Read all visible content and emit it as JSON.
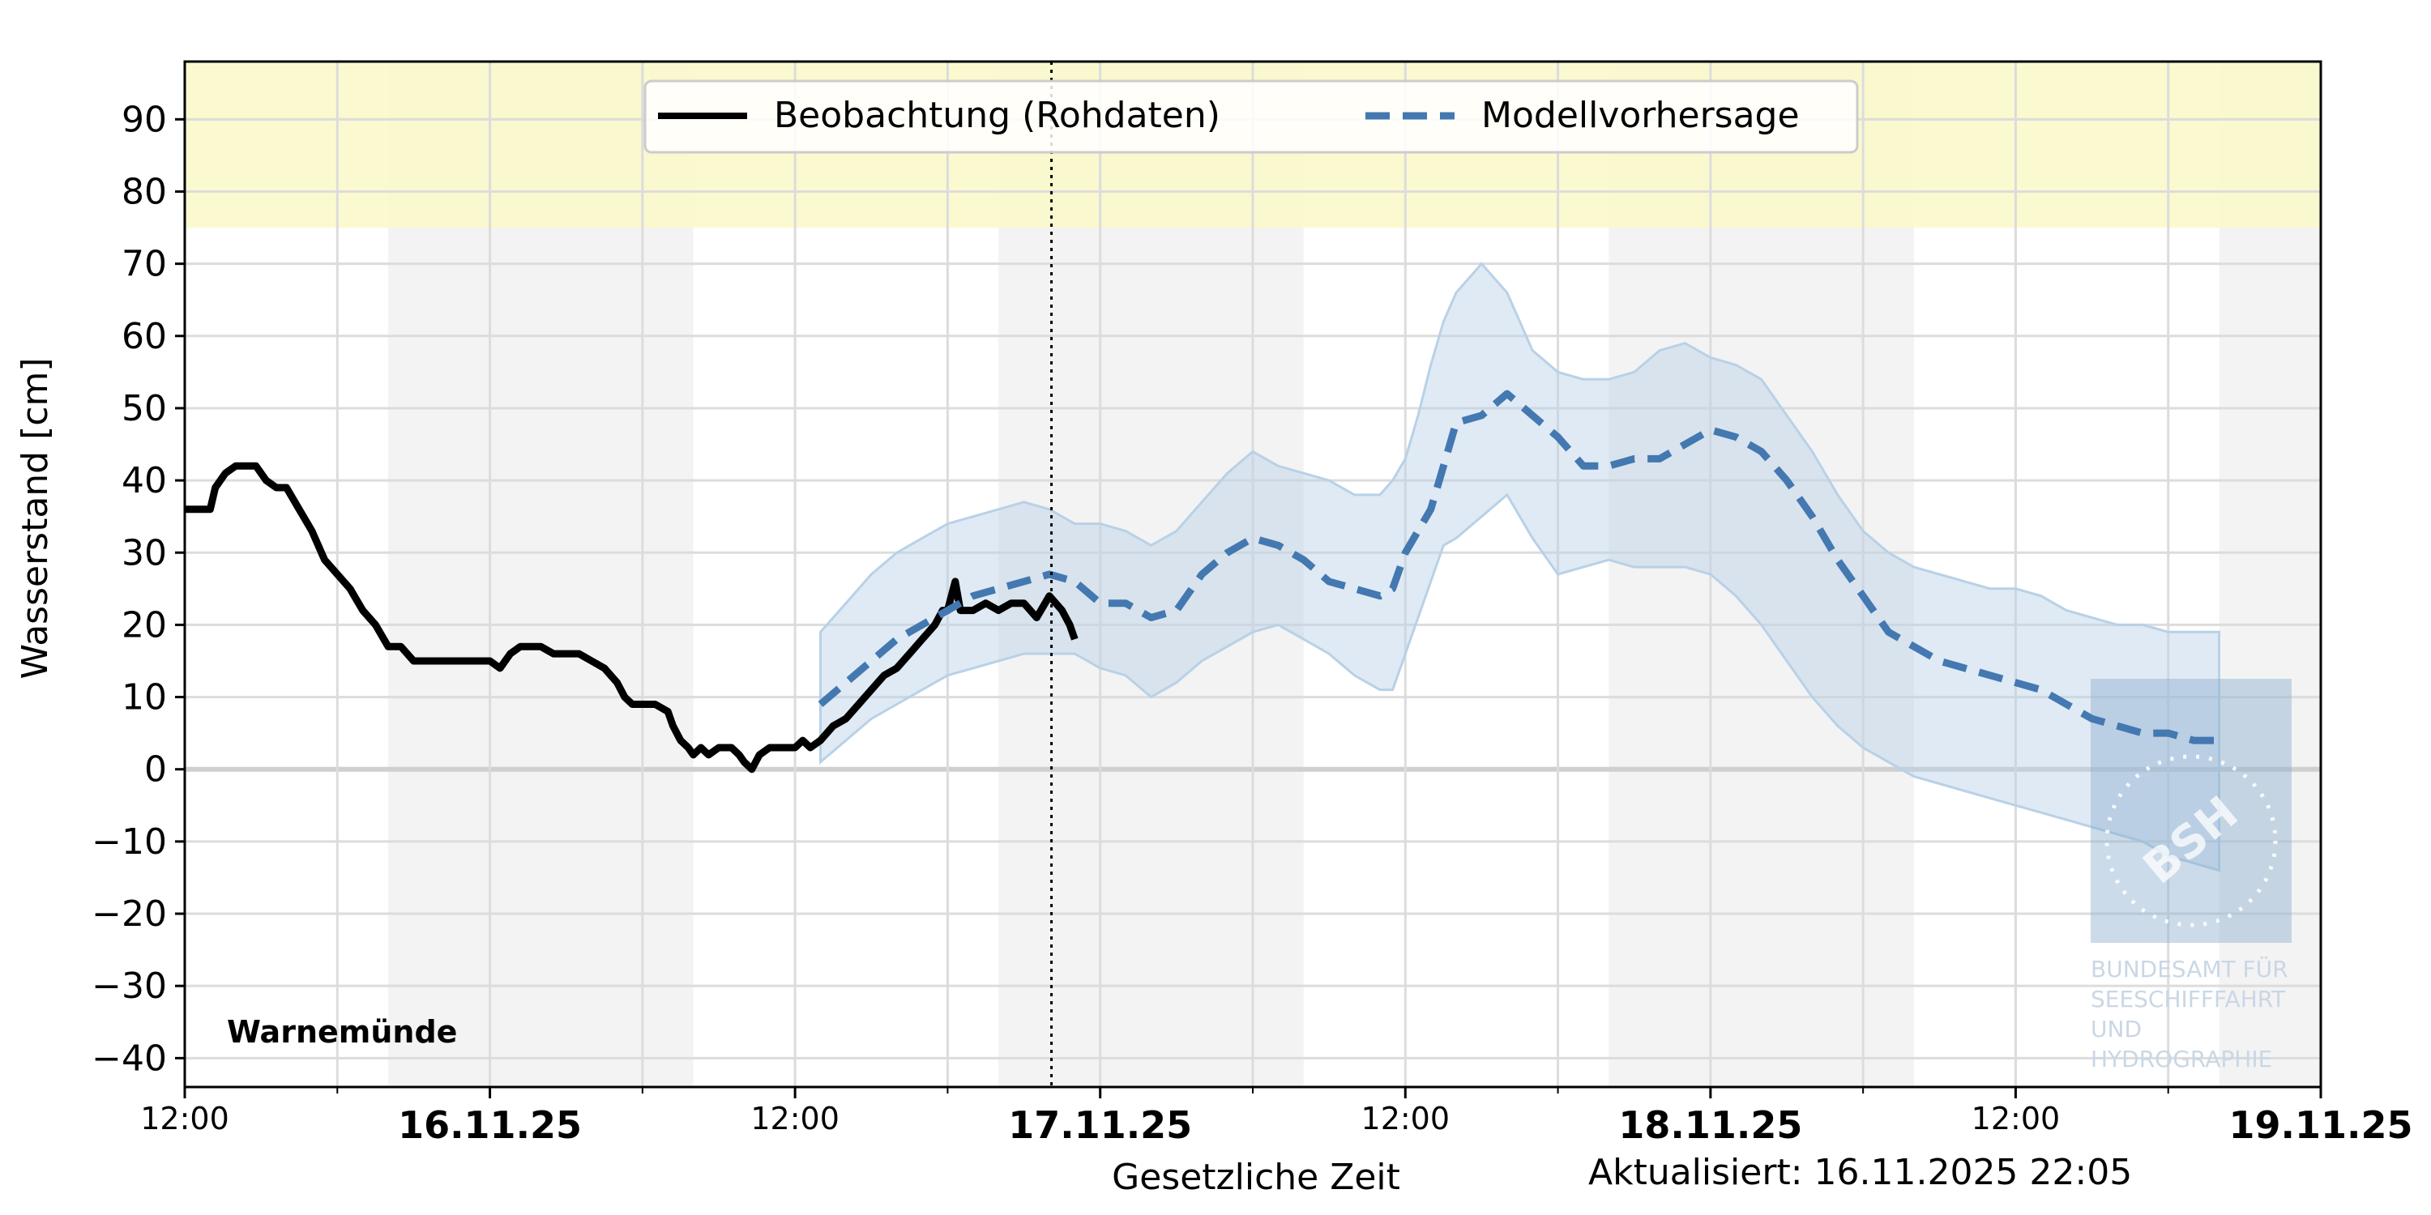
{
  "chart_data": {
    "type": "line",
    "station": "Warnemünde",
    "ylabel": "Wasserstand [cm]",
    "xlabel": "Gesetzliche Zeit",
    "updated": "Aktualisiert: 16.11.2025 22:05",
    "ylim": [
      -44,
      98
    ],
    "xlim_hours": [
      0,
      84
    ],
    "x_start": "2025-11-15 12:00",
    "now_marker": "2025-11-16 22:05",
    "grid": true,
    "legend_position": "top-center",
    "yticks": [
      90,
      80,
      70,
      60,
      50,
      40,
      30,
      20,
      10,
      0,
      -10,
      -20,
      -30,
      -40
    ],
    "ytick_labels": [
      "90",
      "80",
      "70",
      "60",
      "50",
      "40",
      "30",
      "20",
      "10",
      "0",
      "−10",
      "−20",
      "−30",
      "−40"
    ],
    "xtick_labels": [
      {
        "h": 0,
        "label": "12:00",
        "bold": false
      },
      {
        "h": 12,
        "label": "16.11.25",
        "bold": true
      },
      {
        "h": 24,
        "label": "12:00",
        "bold": false
      },
      {
        "h": 36,
        "label": "17.11.25",
        "bold": true
      },
      {
        "h": 48,
        "label": "12:00",
        "bold": false
      },
      {
        "h": 60,
        "label": "18.11.25",
        "bold": true
      },
      {
        "h": 72,
        "label": "12:00",
        "bold": false
      },
      {
        "h": 84,
        "label": "19.11.25",
        "bold": true
      }
    ],
    "minor_tick_hours": [
      6,
      18,
      30,
      42,
      54,
      66,
      78
    ],
    "warning_band": {
      "from": 75,
      "to": 98,
      "color": "#faf8c8"
    },
    "night_shading": [
      [
        8,
        20
      ],
      [
        32,
        44
      ],
      [
        56,
        68
      ],
      [
        80,
        84
      ]
    ],
    "series": [
      {
        "name": "Beobachtung (Rohdaten)",
        "color": "#000000",
        "style": "solid",
        "points": [
          [
            0,
            36
          ],
          [
            1,
            36
          ],
          [
            1.2,
            39
          ],
          [
            1.6,
            41
          ],
          [
            2,
            42
          ],
          [
            2.8,
            42
          ],
          [
            3.2,
            40
          ],
          [
            3.6,
            39
          ],
          [
            4,
            39
          ],
          [
            4.5,
            36
          ],
          [
            5,
            33
          ],
          [
            5.5,
            29
          ],
          [
            6,
            27
          ],
          [
            6.5,
            25
          ],
          [
            7,
            22
          ],
          [
            7.5,
            20
          ],
          [
            8,
            17
          ],
          [
            8.5,
            17
          ],
          [
            9,
            15
          ],
          [
            10,
            15
          ],
          [
            10.5,
            15
          ],
          [
            11,
            15
          ],
          [
            11.5,
            15
          ],
          [
            12,
            15
          ],
          [
            12.4,
            14
          ],
          [
            12.8,
            16
          ],
          [
            13.2,
            17
          ],
          [
            14,
            17
          ],
          [
            14.5,
            16
          ],
          [
            15,
            16
          ],
          [
            15.5,
            16
          ],
          [
            16,
            15
          ],
          [
            16.5,
            14
          ],
          [
            17,
            12
          ],
          [
            17.3,
            10
          ],
          [
            17.6,
            9
          ],
          [
            18.5,
            9
          ],
          [
            19,
            8
          ],
          [
            19.2,
            6
          ],
          [
            19.5,
            4
          ],
          [
            19.8,
            3
          ],
          [
            20,
            2
          ],
          [
            20.3,
            3
          ],
          [
            20.6,
            2
          ],
          [
            21,
            3
          ],
          [
            21.5,
            3
          ],
          [
            21.8,
            2
          ],
          [
            22,
            1
          ],
          [
            22.3,
            0
          ],
          [
            22.6,
            2
          ],
          [
            23,
            3
          ],
          [
            23.5,
            3
          ],
          [
            24,
            3
          ],
          [
            24.3,
            4
          ],
          [
            24.6,
            3
          ],
          [
            25,
            4
          ],
          [
            25.5,
            6
          ],
          [
            26,
            7
          ],
          [
            26.5,
            9
          ],
          [
            27,
            11
          ],
          [
            27.5,
            13
          ],
          [
            28,
            14
          ],
          [
            28.5,
            16
          ],
          [
            29,
            18
          ],
          [
            29.5,
            20
          ],
          [
            29.8,
            22
          ],
          [
            30,
            22
          ],
          [
            30.3,
            26
          ],
          [
            30.5,
            22
          ],
          [
            31,
            22
          ],
          [
            31.5,
            23
          ],
          [
            32,
            22
          ],
          [
            32.5,
            23
          ],
          [
            33,
            23
          ],
          [
            33.5,
            21
          ],
          [
            34,
            24
          ],
          [
            34.5,
            22
          ],
          [
            34.8,
            20
          ],
          [
            35,
            18
          ]
        ]
      },
      {
        "name": "Modellvorhersage",
        "color": "#4478b0",
        "style": "dashed",
        "points": [
          [
            25,
            9
          ],
          [
            26,
            12
          ],
          [
            27,
            15
          ],
          [
            28,
            18
          ],
          [
            29,
            20
          ],
          [
            30,
            22
          ],
          [
            31,
            24
          ],
          [
            32,
            25
          ],
          [
            33,
            26
          ],
          [
            34,
            27
          ],
          [
            35,
            26
          ],
          [
            36,
            23
          ],
          [
            37,
            23
          ],
          [
            38,
            21
          ],
          [
            39,
            22
          ],
          [
            40,
            27
          ],
          [
            41,
            30
          ],
          [
            42,
            32
          ],
          [
            43,
            31
          ],
          [
            44,
            29
          ],
          [
            45,
            26
          ],
          [
            46,
            25
          ],
          [
            47,
            24
          ],
          [
            47.5,
            25
          ],
          [
            48,
            30
          ],
          [
            48.5,
            33
          ],
          [
            49,
            36
          ],
          [
            49.5,
            42
          ],
          [
            50,
            48
          ],
          [
            51,
            49
          ],
          [
            52,
            52
          ],
          [
            53,
            49
          ],
          [
            54,
            46
          ],
          [
            55,
            42
          ],
          [
            56,
            42
          ],
          [
            57,
            43
          ],
          [
            58,
            43
          ],
          [
            59,
            45
          ],
          [
            60,
            47
          ],
          [
            61,
            46
          ],
          [
            62,
            44
          ],
          [
            63,
            40
          ],
          [
            64,
            35
          ],
          [
            65,
            29
          ],
          [
            66,
            24
          ],
          [
            67,
            19
          ],
          [
            68,
            17
          ],
          [
            69,
            15
          ],
          [
            70,
            14
          ],
          [
            71,
            13
          ],
          [
            72,
            12
          ],
          [
            73,
            11
          ],
          [
            74,
            9
          ],
          [
            75,
            7
          ],
          [
            76,
            6
          ],
          [
            77,
            5
          ],
          [
            78,
            5
          ],
          [
            79,
            4
          ],
          [
            80,
            4
          ]
        ]
      },
      {
        "name": "",
        "role": "uncertainty_band",
        "color": "#b8d1e7",
        "upper": [
          [
            25,
            19
          ],
          [
            26,
            23
          ],
          [
            27,
            27
          ],
          [
            28,
            30
          ],
          [
            29,
            32
          ],
          [
            30,
            34
          ],
          [
            31,
            35
          ],
          [
            32,
            36
          ],
          [
            33,
            37
          ],
          [
            34,
            36
          ],
          [
            35,
            34
          ],
          [
            36,
            34
          ],
          [
            37,
            33
          ],
          [
            38,
            31
          ],
          [
            39,
            33
          ],
          [
            40,
            37
          ],
          [
            41,
            41
          ],
          [
            42,
            44
          ],
          [
            43,
            42
          ],
          [
            44,
            41
          ],
          [
            45,
            40
          ],
          [
            46,
            38
          ],
          [
            47,
            38
          ],
          [
            47.5,
            40
          ],
          [
            48,
            43
          ],
          [
            48.5,
            49
          ],
          [
            49,
            56
          ],
          [
            49.5,
            62
          ],
          [
            50,
            66
          ],
          [
            51,
            70
          ],
          [
            52,
            66
          ],
          [
            53,
            58
          ],
          [
            54,
            55
          ],
          [
            55,
            54
          ],
          [
            56,
            54
          ],
          [
            57,
            55
          ],
          [
            58,
            58
          ],
          [
            59,
            59
          ],
          [
            60,
            57
          ],
          [
            61,
            56
          ],
          [
            62,
            54
          ],
          [
            63,
            49
          ],
          [
            64,
            44
          ],
          [
            65,
            38
          ],
          [
            66,
            33
          ],
          [
            67,
            30
          ],
          [
            68,
            28
          ],
          [
            69,
            27
          ],
          [
            70,
            26
          ],
          [
            71,
            25
          ],
          [
            72,
            25
          ],
          [
            73,
            24
          ],
          [
            74,
            22
          ],
          [
            75,
            21
          ],
          [
            76,
            20
          ],
          [
            77,
            20
          ],
          [
            78,
            19
          ],
          [
            79,
            19
          ],
          [
            80,
            19
          ]
        ],
        "lower": [
          [
            25,
            1
          ],
          [
            26,
            4
          ],
          [
            27,
            7
          ],
          [
            28,
            9
          ],
          [
            29,
            11
          ],
          [
            30,
            13
          ],
          [
            31,
            14
          ],
          [
            32,
            15
          ],
          [
            33,
            16
          ],
          [
            34,
            16
          ],
          [
            35,
            16
          ],
          [
            36,
            14
          ],
          [
            37,
            13
          ],
          [
            38,
            10
          ],
          [
            39,
            12
          ],
          [
            40,
            15
          ],
          [
            41,
            17
          ],
          [
            42,
            19
          ],
          [
            43,
            20
          ],
          [
            44,
            18
          ],
          [
            45,
            16
          ],
          [
            46,
            13
          ],
          [
            47,
            11
          ],
          [
            47.5,
            11
          ],
          [
            48,
            16
          ],
          [
            48.5,
            21
          ],
          [
            49,
            26
          ],
          [
            49.5,
            31
          ],
          [
            50,
            32
          ],
          [
            51,
            35
          ],
          [
            52,
            38
          ],
          [
            53,
            32
          ],
          [
            54,
            27
          ],
          [
            55,
            28
          ],
          [
            56,
            29
          ],
          [
            57,
            28
          ],
          [
            58,
            28
          ],
          [
            59,
            28
          ],
          [
            60,
            27
          ],
          [
            61,
            24
          ],
          [
            62,
            20
          ],
          [
            63,
            15
          ],
          [
            64,
            10
          ],
          [
            65,
            6
          ],
          [
            66,
            3
          ],
          [
            67,
            1
          ],
          [
            68,
            -1
          ],
          [
            69,
            -2
          ],
          [
            70,
            -3
          ],
          [
            71,
            -4
          ],
          [
            72,
            -5
          ],
          [
            73,
            -6
          ],
          [
            74,
            -7
          ],
          [
            75,
            -8
          ],
          [
            76,
            -9
          ],
          [
            77,
            -10
          ],
          [
            78,
            -12
          ],
          [
            79,
            -13
          ],
          [
            80,
            -14
          ]
        ]
      }
    ]
  },
  "watermark": {
    "logo_text": "BSH",
    "lines": [
      "BUNDESAMT FÜR",
      "SEESCHIFFFAHRT",
      "UND",
      "HYDROGRAPHIE"
    ]
  }
}
